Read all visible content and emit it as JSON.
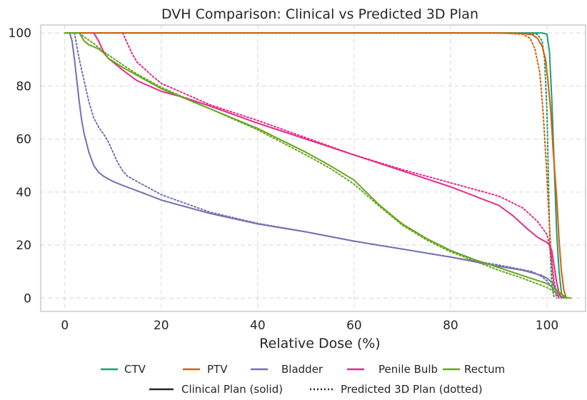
{
  "chart_data": {
    "type": "line",
    "title": "DVH Comparison: Clinical vs Predicted 3D Plan",
    "xlabel": "Relative Dose (%)",
    "ylabel": "",
    "xlim": [
      -5,
      108
    ],
    "ylim": [
      -5,
      103
    ],
    "xticks": [
      0,
      20,
      40,
      60,
      80,
      100
    ],
    "yticks": [
      0,
      20,
      40,
      60,
      80,
      100
    ],
    "grid": true,
    "legend_position": "bottom",
    "series": [
      {
        "name": "CTV",
        "color": "#1b9e77",
        "style": "solid",
        "points": [
          [
            0,
            100
          ],
          [
            97,
            100
          ],
          [
            99,
            100
          ],
          [
            100,
            99.5
          ],
          [
            100.5,
            93
          ],
          [
            101,
            75
          ],
          [
            101.5,
            50
          ],
          [
            102,
            25
          ],
          [
            102.5,
            10
          ],
          [
            103,
            2
          ],
          [
            103.5,
            0
          ]
        ]
      },
      {
        "name": "PTV",
        "color": "#d95f02",
        "style": "solid",
        "points": [
          [
            0,
            100
          ],
          [
            90,
            100
          ],
          [
            95,
            99.8
          ],
          [
            97,
            99.3
          ],
          [
            98,
            98
          ],
          [
            99,
            95
          ],
          [
            99.7,
            90
          ],
          [
            100.2,
            82
          ],
          [
            100.8,
            70
          ],
          [
            101.3,
            55
          ],
          [
            102,
            38
          ],
          [
            102.5,
            22
          ],
          [
            103,
            10
          ],
          [
            103.5,
            3
          ],
          [
            104,
            0
          ]
        ]
      },
      {
        "name": "Bladder",
        "color": "#7570b3",
        "style": "solid",
        "points": [
          [
            1,
            100
          ],
          [
            1.5,
            97
          ],
          [
            2,
            90
          ],
          [
            2.5,
            82
          ],
          [
            3,
            74
          ],
          [
            3.5,
            67
          ],
          [
            4,
            62
          ],
          [
            5,
            55
          ],
          [
            6,
            50
          ],
          [
            7,
            47.5
          ],
          [
            8,
            46
          ],
          [
            10,
            44
          ],
          [
            12,
            42.5
          ],
          [
            15,
            40.5
          ],
          [
            20,
            37
          ],
          [
            30,
            32
          ],
          [
            40,
            28
          ],
          [
            50,
            25
          ],
          [
            60,
            21.5
          ],
          [
            70,
            18.5
          ],
          [
            80,
            15.5
          ],
          [
            90,
            12
          ],
          [
            95,
            10.5
          ],
          [
            99,
            8.5
          ],
          [
            100,
            7.5
          ],
          [
            101,
            6
          ],
          [
            102,
            3
          ],
          [
            102.5,
            1.5
          ],
          [
            103,
            0
          ]
        ]
      },
      {
        "name": "Penile Bulb",
        "color": "#e7298a",
        "style": "solid",
        "points": [
          [
            6,
            100
          ],
          [
            7,
            97
          ],
          [
            8,
            93
          ],
          [
            9,
            90.5
          ],
          [
            10,
            89
          ],
          [
            12,
            86
          ],
          [
            15,
            82
          ],
          [
            20,
            78
          ],
          [
            25,
            75.5
          ],
          [
            30,
            72.5
          ],
          [
            40,
            66
          ],
          [
            50,
            60
          ],
          [
            60,
            54
          ],
          [
            70,
            48
          ],
          [
            80,
            42
          ],
          [
            90,
            35
          ],
          [
            93,
            31
          ],
          [
            96,
            26
          ],
          [
            98,
            23
          ],
          [
            100,
            21
          ],
          [
            100.5,
            20
          ],
          [
            101,
            18
          ],
          [
            101.5,
            12
          ],
          [
            102,
            6
          ],
          [
            102.5,
            2
          ],
          [
            103,
            0
          ]
        ]
      },
      {
        "name": "Rectum",
        "color": "#66a61e",
        "style": "solid",
        "points": [
          [
            0,
            100
          ],
          [
            3,
            100
          ],
          [
            4,
            97
          ],
          [
            5,
            95.5
          ],
          [
            7,
            94
          ],
          [
            8,
            92.5
          ],
          [
            9,
            90.5
          ],
          [
            12,
            87
          ],
          [
            15,
            84
          ],
          [
            20,
            79
          ],
          [
            30,
            71.5
          ],
          [
            40,
            64
          ],
          [
            50,
            55
          ],
          [
            55,
            50
          ],
          [
            60,
            44.5
          ],
          [
            65,
            35.5
          ],
          [
            70,
            28
          ],
          [
            75,
            22.5
          ],
          [
            80,
            18
          ],
          [
            85,
            14.5
          ],
          [
            90,
            11.5
          ],
          [
            95,
            8.5
          ],
          [
            100,
            5.5
          ],
          [
            102,
            3
          ],
          [
            103,
            1.5
          ],
          [
            104,
            0.3
          ],
          [
            105,
            0
          ]
        ]
      },
      {
        "name": "CTV",
        "color": "#1b9e77",
        "style": "dotted",
        "points": [
          [
            0,
            100
          ],
          [
            96,
            100
          ],
          [
            98,
            99.5
          ],
          [
            99,
            97
          ],
          [
            99.5,
            90
          ],
          [
            100,
            70
          ],
          [
            100.3,
            45
          ],
          [
            100.6,
            20
          ],
          [
            101,
            5
          ],
          [
            101.5,
            0
          ]
        ]
      },
      {
        "name": "PTV",
        "color": "#d95f02",
        "style": "dotted",
        "points": [
          [
            0,
            100
          ],
          [
            90,
            100
          ],
          [
            95,
            99.5
          ],
          [
            96.5,
            98
          ],
          [
            97.5,
            94
          ],
          [
            98.5,
            85
          ],
          [
            99.2,
            70
          ],
          [
            99.8,
            52
          ],
          [
            100.3,
            35
          ],
          [
            100.8,
            18
          ],
          [
            101.3,
            6
          ],
          [
            102,
            0
          ]
        ]
      },
      {
        "name": "Bladder",
        "color": "#7570b3",
        "style": "dotted",
        "points": [
          [
            2,
            100
          ],
          [
            2.5,
            95
          ],
          [
            3,
            90
          ],
          [
            4,
            82
          ],
          [
            5,
            74
          ],
          [
            6,
            68
          ],
          [
            7,
            64.5
          ],
          [
            8,
            62
          ],
          [
            9,
            59
          ],
          [
            10,
            55
          ],
          [
            11,
            51
          ],
          [
            12,
            48
          ],
          [
            13,
            46
          ],
          [
            15,
            44
          ],
          [
            20,
            39
          ],
          [
            30,
            32.5
          ],
          [
            40,
            28.2
          ],
          [
            50,
            25
          ],
          [
            60,
            21.5
          ],
          [
            70,
            18.5
          ],
          [
            80,
            15.5
          ],
          [
            90,
            12.5
          ],
          [
            97,
            10
          ],
          [
            99,
            8
          ],
          [
            100,
            6.5
          ],
          [
            101,
            4
          ],
          [
            102,
            1.5
          ],
          [
            102.5,
            0
          ]
        ]
      },
      {
        "name": "Penile Bulb",
        "color": "#e7298a",
        "style": "dotted",
        "points": [
          [
            12,
            100
          ],
          [
            13,
            96
          ],
          [
            14,
            92
          ],
          [
            15,
            89
          ],
          [
            18,
            84
          ],
          [
            20,
            81
          ],
          [
            25,
            77
          ],
          [
            30,
            73
          ],
          [
            40,
            67
          ],
          [
            50,
            60.5
          ],
          [
            60,
            54
          ],
          [
            70,
            48.5
          ],
          [
            80,
            43.5
          ],
          [
            85,
            41
          ],
          [
            90,
            38.5
          ],
          [
            95,
            34
          ],
          [
            98,
            29
          ],
          [
            100,
            24
          ],
          [
            100.5,
            20
          ],
          [
            101,
            14
          ],
          [
            101.5,
            6
          ],
          [
            102,
            2
          ],
          [
            102.5,
            0
          ]
        ]
      },
      {
        "name": "Rectum",
        "color": "#66a61e",
        "style": "dotted",
        "points": [
          [
            3,
            100
          ],
          [
            4,
            98.5
          ],
          [
            6,
            96
          ],
          [
            8,
            93
          ],
          [
            10,
            90.5
          ],
          [
            12,
            88
          ],
          [
            15,
            84.5
          ],
          [
            20,
            79.5
          ],
          [
            30,
            71.5
          ],
          [
            40,
            63.5
          ],
          [
            50,
            54
          ],
          [
            55,
            49
          ],
          [
            60,
            43
          ],
          [
            65,
            35
          ],
          [
            70,
            27.5
          ],
          [
            75,
            22
          ],
          [
            80,
            17.5
          ],
          [
            85,
            14
          ],
          [
            90,
            10.5
          ],
          [
            95,
            7.5
          ],
          [
            100,
            4
          ],
          [
            102,
            2
          ],
          [
            103,
            0.5
          ],
          [
            104,
            0
          ]
        ]
      }
    ],
    "legend": {
      "series_entries": [
        {
          "label": "CTV",
          "color": "#1b9e77"
        },
        {
          "label": "PTV",
          "color": "#d95f02"
        },
        {
          "label": "Bladder",
          "color": "#7570b3"
        },
        {
          "label": "Penile Bulb",
          "color": "#e7298a"
        },
        {
          "label": "Rectum",
          "color": "#66a61e"
        }
      ],
      "style_entries": [
        {
          "label": "Clinical Plan (solid)",
          "style": "solid"
        },
        {
          "label": "Predicted 3D Plan (dotted)",
          "style": "dotted"
        }
      ]
    }
  }
}
